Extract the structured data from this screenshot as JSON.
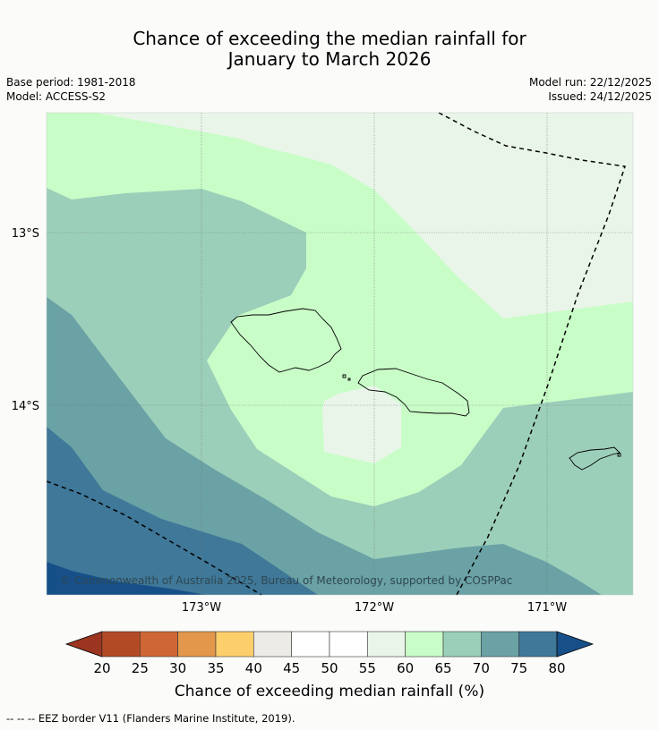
{
  "title": {
    "line1": "Chance of exceeding the median rainfall for",
    "line2": "January to March 2026"
  },
  "meta": {
    "base_period": "Base period: 1981-2018",
    "model": "Model: ACCESS-S2",
    "model_run": "Model run: 22/12/2025",
    "issued": "Issued: 24/12/2025"
  },
  "map": {
    "lat_labels": [
      "13°S",
      "14°S"
    ],
    "lon_labels": [
      "173°W",
      "172°W",
      "171°W"
    ],
    "copyright": "© Commonwealth of Australia 2025, Bureau of Meteorology, supported by COSPPac"
  },
  "legend": {
    "ticks": [
      "20",
      "25",
      "30",
      "35",
      "40",
      "45",
      "50",
      "55",
      "60",
      "65",
      "70",
      "75",
      "80"
    ],
    "colors": [
      "#b34a26",
      "#cf6734",
      "#e2974a",
      "#fdcf6b",
      "#ecebe7",
      "#ffffff",
      "#ffffff",
      "#eaf5ea",
      "#c9fdc8",
      "#9ccfb9",
      "#6aa2a5",
      "#3f7898"
    ],
    "low_color": "#9b3520",
    "high_color": "#175089",
    "label": "Chance of exceeding median rainfall (%)"
  },
  "footnote": "--  --  -- EEZ border V11 (Flanders Marine Institute, 2019)."
}
